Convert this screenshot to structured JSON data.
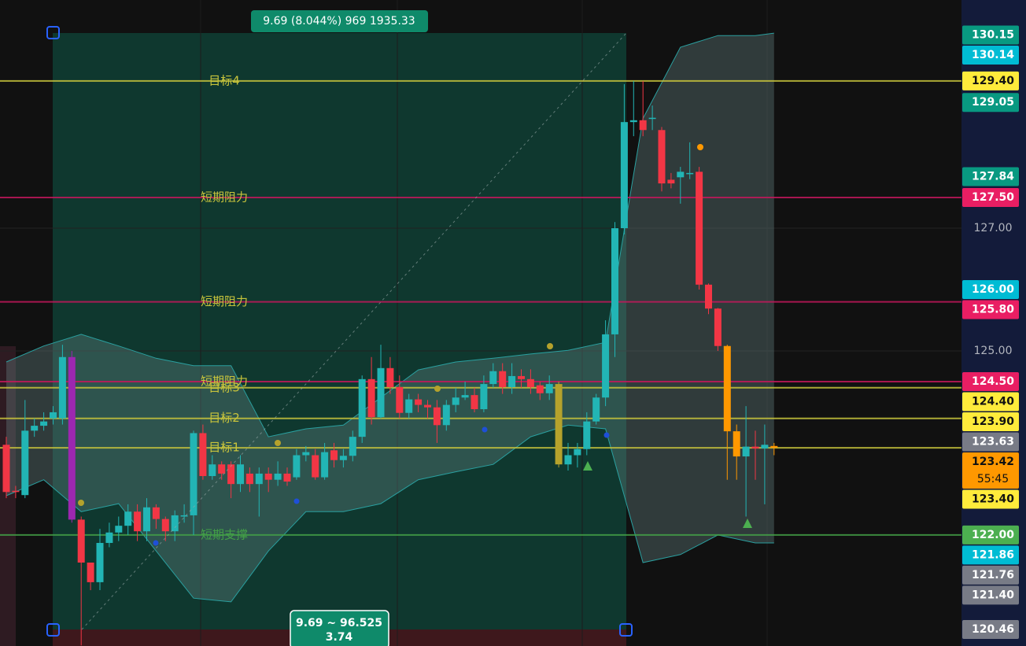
{
  "chart_data": {
    "type": "candlestick",
    "ylim": [
      120.19,
      130.72
    ],
    "yticks": [
      {
        "value": 125,
        "label": "125.00"
      },
      {
        "value": 127,
        "label": "127.00"
      }
    ],
    "grid": true,
    "up_color": "#22b5b5",
    "down_color": "#f23645",
    "bar_colors": {
      "7": "#9c27b0",
      "59": "#b5a22c",
      "77": "#ff9800",
      "78": "#ff9800",
      "82": "#ff9800"
    },
    "open": [
      123.47,
      122.72,
      122.65,
      123.7,
      123.78,
      123.9,
      123.9,
      124.9,
      122.25,
      121.55,
      121.23,
      121.87,
      122.04,
      122.15,
      122.38,
      122.06,
      122.45,
      122.26,
      122.06,
      122.3,
      122.32,
      123.66,
      122.96,
      123.15,
      123.15,
      122.83,
      123.0,
      122.83,
      123.0,
      122.9,
      123.0,
      122.94,
      123.3,
      123.3,
      122.94,
      123.38,
      123.22,
      123.29,
      123.6,
      124.54,
      123.92,
      124.72,
      124.41,
      123.99,
      124.21,
      124.12,
      124.08,
      123.79,
      124.12,
      124.24,
      124.28,
      124.05,
      124.46,
      124.67,
      124.41,
      124.59,
      124.54,
      124.44,
      124.31,
      124.46,
      123.15,
      123.3,
      123.4,
      123.85,
      124.24,
      125.27,
      127.0,
      128.73,
      128.76,
      128.8,
      128.6,
      127.79,
      127.83,
      127.9,
      127.92,
      126.08,
      125.69,
      125.08,
      123.69,
      123.28,
      123.44,
      123.41,
      123.45
    ],
    "high": [
      123.6,
      122.8,
      124.2,
      123.9,
      124.0,
      124.1,
      125.1,
      125.0,
      122.3,
      121.5,
      122.1,
      122.2,
      122.3,
      122.5,
      122.5,
      122.6,
      122.5,
      122.3,
      122.4,
      122.5,
      123.7,
      123.8,
      123.3,
      123.2,
      123.2,
      123.3,
      123.1,
      123.1,
      123.1,
      123.2,
      123.1,
      123.4,
      123.45,
      123.4,
      123.5,
      123.5,
      123.4,
      123.7,
      124.6,
      124.9,
      125.1,
      124.9,
      124.6,
      124.3,
      124.3,
      124.2,
      124.2,
      124.2,
      124.4,
      124.5,
      124.4,
      124.6,
      124.8,
      124.8,
      124.8,
      124.7,
      124.7,
      124.5,
      124.6,
      124.5,
      123.5,
      123.5,
      124.0,
      124.3,
      125.5,
      127.1,
      129.35,
      129.4,
      129.4,
      129.0,
      128.65,
      127.9,
      128.0,
      128.4,
      128.0,
      126.1,
      125.7,
      125.1,
      123.8,
      124.1,
      123.7,
      123.8,
      123.5
    ],
    "low": [
      122.6,
      122.6,
      122.6,
      123.6,
      123.7,
      123.8,
      123.8,
      122.2,
      120.2,
      121.1,
      121.1,
      121.8,
      121.9,
      122.0,
      121.9,
      121.9,
      122.1,
      121.9,
      121.9,
      122.2,
      122.0,
      122.9,
      122.9,
      122.9,
      122.6,
      122.7,
      122.7,
      122.3,
      122.7,
      122.8,
      122.8,
      122.9,
      123.2,
      122.9,
      122.9,
      123.1,
      123.1,
      123.2,
      123.5,
      123.8,
      123.9,
      124.3,
      123.9,
      123.9,
      124.0,
      123.9,
      123.5,
      123.7,
      124.0,
      124.2,
      124.0,
      124.0,
      124.4,
      124.3,
      124.3,
      124.4,
      124.3,
      124.2,
      124.2,
      123.1,
      123.05,
      123.1,
      123.3,
      123.8,
      124.1,
      124.9,
      126.9,
      128.5,
      128.5,
      128.6,
      127.6,
      127.65,
      127.4,
      127.8,
      126.0,
      125.6,
      125.0,
      122.9,
      122.9,
      122.3,
      122.9,
      122.5,
      123.3
    ],
    "close": [
      122.7,
      122.7,
      123.7,
      123.78,
      123.85,
      124.0,
      124.9,
      122.25,
      121.55,
      121.23,
      121.87,
      122.04,
      122.15,
      122.38,
      122.06,
      122.45,
      122.26,
      122.06,
      122.32,
      122.32,
      123.66,
      122.96,
      123.15,
      123.0,
      122.83,
      123.15,
      122.83,
      123.0,
      122.9,
      123.0,
      122.87,
      123.3,
      123.35,
      122.94,
      123.35,
      123.22,
      123.29,
      123.6,
      124.54,
      123.92,
      124.72,
      124.41,
      123.99,
      124.21,
      124.12,
      124.08,
      123.79,
      124.12,
      124.24,
      124.28,
      124.05,
      124.46,
      124.67,
      124.41,
      124.59,
      124.54,
      124.41,
      124.31,
      124.46,
      123.15,
      123.3,
      123.4,
      123.85,
      124.24,
      125.27,
      127.0,
      128.73,
      128.76,
      128.6,
      128.8,
      127.73,
      127.73,
      127.92,
      127.9,
      126.08,
      125.69,
      125.08,
      123.69,
      123.28,
      123.44,
      123.41,
      123.47,
      123.42
    ],
    "band_x": [
      0,
      4,
      8,
      12,
      16,
      20,
      24,
      28,
      32,
      36,
      40,
      44,
      48,
      52,
      56,
      60,
      64,
      68,
      72,
      76,
      80,
      82
    ],
    "band_upper": [
      124.82,
      125.08,
      125.27,
      125.08,
      124.88,
      124.76,
      124.76,
      123.6,
      123.73,
      123.79,
      124.24,
      124.69,
      124.82,
      124.88,
      124.95,
      125.01,
      125.14,
      128.79,
      129.95,
      130.14,
      130.14,
      130.18
    ],
    "band_lower": [
      122.64,
      122.9,
      122.38,
      122.51,
      121.74,
      120.97,
      120.91,
      121.74,
      122.38,
      122.38,
      122.51,
      122.9,
      123.03,
      123.15,
      123.6,
      123.79,
      123.73,
      121.55,
      121.68,
      122.0,
      121.87,
      121.87
    ],
    "levels": [
      {
        "name": "目标4",
        "value": 129.4,
        "color": "#c8c43c"
      },
      {
        "name": "短期阻力",
        "value": 127.5,
        "color": "#c2185b"
      },
      {
        "name": "短期阻力",
        "value": 125.8,
        "color": "#c2185b"
      },
      {
        "name": "短期阻力",
        "value": 124.5,
        "color": "#c2185b"
      },
      {
        "name": "目标3",
        "value": 124.4,
        "color": "#c8c43c"
      },
      {
        "name": "目标2",
        "value": 123.9,
        "color": "#c8c43c"
      },
      {
        "name": "目标1",
        "value": 123.42,
        "color": "#c8c43c"
      },
      {
        "name": "短期支撑",
        "value": 122.0,
        "color": "#43a047"
      }
    ],
    "price_labels": [
      {
        "value": 130.15,
        "label": "130.15",
        "color": "#089981"
      },
      {
        "value": 130.14,
        "label": "130.14",
        "color": "#00bcd4"
      },
      {
        "value": 129.4,
        "label": "129.40",
        "color": "#ffeb3b"
      },
      {
        "value": 129.05,
        "label": "129.05",
        "color": "#089981"
      },
      {
        "value": 127.84,
        "label": "127.84",
        "color": "#089981"
      },
      {
        "value": 127.5,
        "label": "127.50",
        "color": "#e91e63"
      },
      {
        "value": 126.0,
        "label": "126.00",
        "color": "#00bcd4"
      },
      {
        "value": 125.8,
        "label": "125.80",
        "color": "#e91e63"
      },
      {
        "value": 124.5,
        "label": "124.50",
        "color": "#e91e63"
      },
      {
        "value": 124.4,
        "label": "124.40",
        "color": "#ffeb3b"
      },
      {
        "value": 123.9,
        "label": "123.90",
        "color": "#ffeb3b"
      },
      {
        "value": 123.63,
        "label": "123.63",
        "color": "#787b86"
      },
      {
        "value": 123.42,
        "label": "123.42",
        "color": "#ff9800"
      },
      {
        "value": 123.4,
        "label": "123.40",
        "color": "#ffeb3b"
      },
      {
        "value": 122.0,
        "label": "122.00",
        "color": "#4caf50"
      },
      {
        "value": 121.86,
        "label": "121.86",
        "color": "#00bcd4"
      },
      {
        "value": 121.76,
        "label": "121.76",
        "color": "#787b86"
      },
      {
        "value": 121.4,
        "label": "121.40",
        "color": "#787b86"
      },
      {
        "value": 120.46,
        "label": "120.46",
        "color": "#787b86"
      }
    ],
    "countdown": "55:45",
    "measure_top": "9.69 (8.044%) 969 1935.33",
    "measure_bottom": [
      "9.69 ~ 96.525",
      "3.74"
    ]
  }
}
